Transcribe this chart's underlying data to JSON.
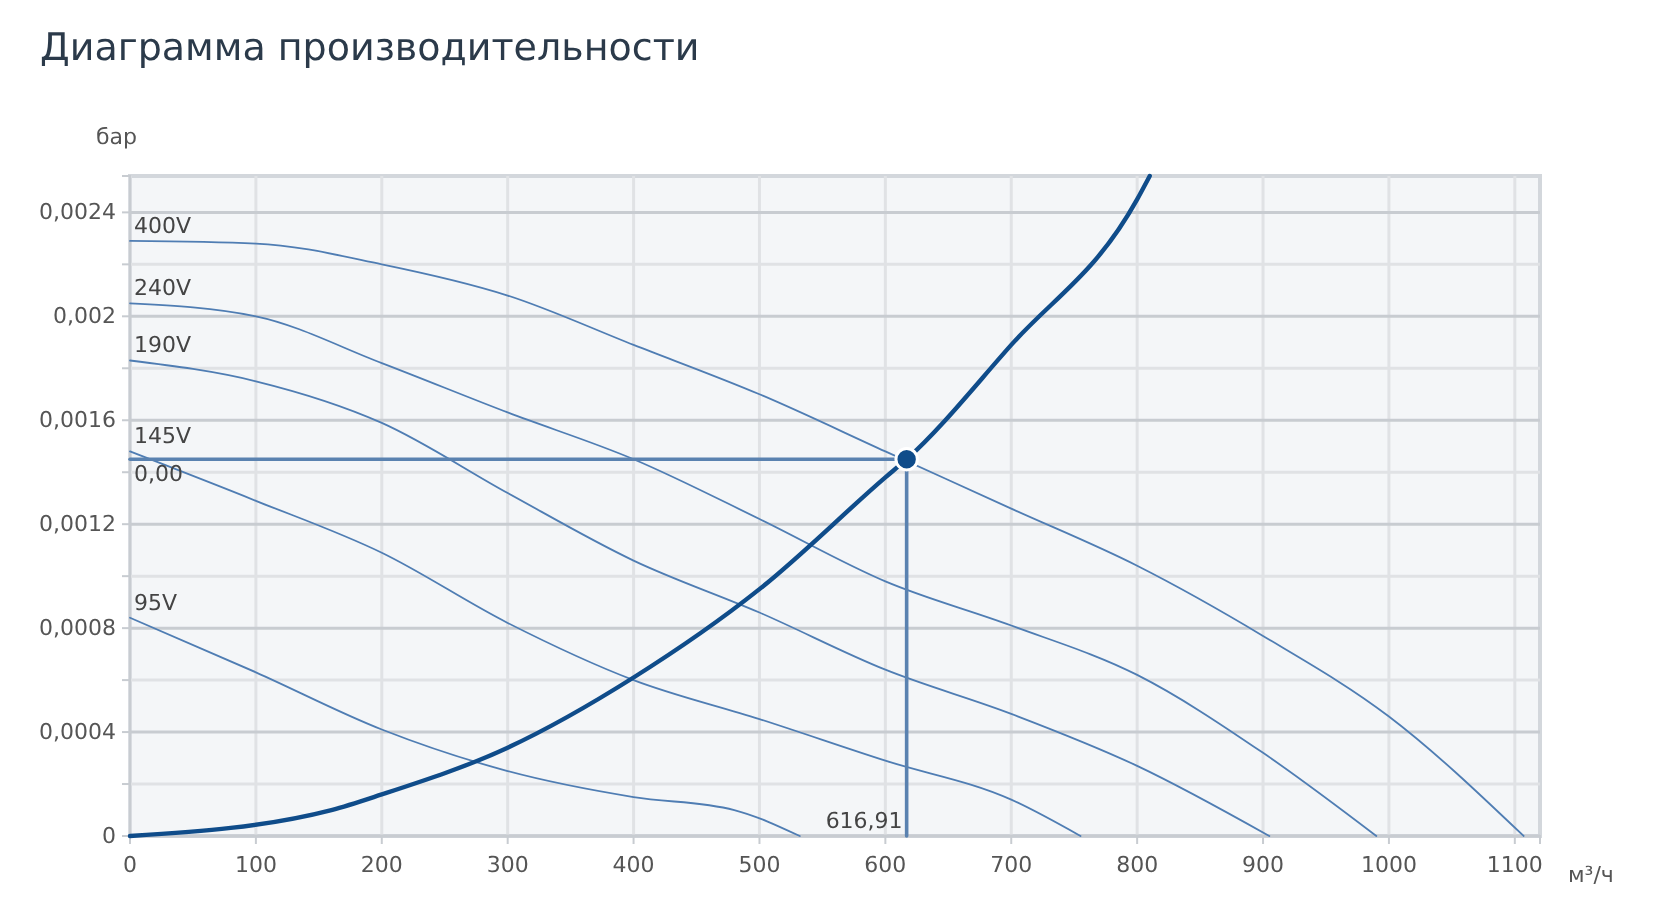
{
  "chart_data": {
    "type": "line",
    "title": "Диаграмма производительности",
    "xlabel": "м³/ч",
    "ylabel": "бар",
    "xlim": [
      0,
      1120
    ],
    "ylim": [
      0,
      0.00254
    ],
    "xticks": [
      0,
      100,
      200,
      300,
      400,
      500,
      600,
      700,
      800,
      900,
      1000,
      1100
    ],
    "yticks": [
      0,
      {
        "value": 0.0002,
        "label": null
      },
      {
        "value": 0.0004,
        "label": "0,0004"
      },
      {
        "value": 0.0006,
        "label": null
      },
      {
        "value": 0.0008,
        "label": "0,0008"
      },
      {
        "value": 0.001,
        "label": null
      },
      {
        "value": 0.0012,
        "label": "0,0012"
      },
      {
        "value": 0.0014,
        "label": null
      },
      {
        "value": 0.0016,
        "label": "0,0016"
      },
      {
        "value": 0.0018,
        "label": null
      },
      {
        "value": 0.002,
        "label": "0,002"
      },
      {
        "value": 0.0022,
        "label": null
      },
      {
        "value": 0.0024,
        "label": "0,0024"
      }
    ],
    "grid": true,
    "line_style": "solid",
    "series": [
      {
        "name": "400V",
        "color": "#4f7db3",
        "x": [
          0,
          100,
          200,
          300,
          400,
          500,
          600,
          700,
          800,
          900,
          1000,
          1107
        ],
        "values": [
          0.00229,
          0.00228,
          0.0022,
          0.00208,
          0.00189,
          0.0017,
          0.00148,
          0.00126,
          0.00104,
          0.00077,
          0.00046,
          0
        ]
      },
      {
        "name": "240V",
        "color": "#4f7db3",
        "x": [
          0,
          100,
          200,
          300,
          400,
          500,
          600,
          700,
          800,
          900,
          990
        ],
        "values": [
          0.00205,
          0.002,
          0.00182,
          0.00163,
          0.00145,
          0.00122,
          0.00098,
          0.00081,
          0.00062,
          0.00032,
          0
        ]
      },
      {
        "name": "190V",
        "color": "#4f7db3",
        "x": [
          0,
          100,
          200,
          300,
          400,
          500,
          600,
          700,
          800,
          905
        ],
        "values": [
          0.00183,
          0.00175,
          0.00159,
          0.00132,
          0.00106,
          0.00086,
          0.00064,
          0.00047,
          0.00027,
          0
        ]
      },
      {
        "name": "145V",
        "color": "#4f7db3",
        "x": [
          0,
          100,
          200,
          300,
          400,
          500,
          600,
          700,
          755
        ],
        "values": [
          0.00148,
          0.00129,
          0.00109,
          0.00082,
          0.0006,
          0.00045,
          0.00029,
          0.00014,
          0
        ]
      },
      {
        "name": "95V",
        "color": "#4f7db3",
        "x": [
          0,
          100,
          200,
          300,
          400,
          480,
          532
        ],
        "values": [
          0.00084,
          0.00063,
          0.00041,
          0.00025,
          0.00015,
          0.0001,
          0
        ]
      },
      {
        "color": "#0f4c8a",
        "x": [
          0,
          160,
          200,
          300,
          400,
          500,
          600,
          616.91,
          700,
          800,
          810
        ],
        "values": [
          0,
          0.0001,
          0.00016,
          0.00034,
          0.00061,
          0.00095,
          0.00138,
          0.00145,
          0.00189,
          0.00245,
          0.00254
        ]
      },
      {
        "color": "#5a82b0",
        "x": [
          0,
          616.91
        ],
        "values": [
          0.00145,
          0.00145
        ]
      },
      {
        "color": "#5a82b0",
        "x": [
          616.91,
          616.91
        ],
        "values": [
          0.00145,
          0
        ]
      },
      {
        "type": "scatter",
        "marker": "circle",
        "color": "#0f4c8a",
        "x": [
          616.91
        ],
        "values": [
          0.00145
        ]
      }
    ],
    "annotations": [
      {
        "text": "616,91",
        "x": 616.91,
        "y": 0
      },
      {
        "text": "0,00",
        "x": 0,
        "y": 0.00145
      }
    ]
  }
}
